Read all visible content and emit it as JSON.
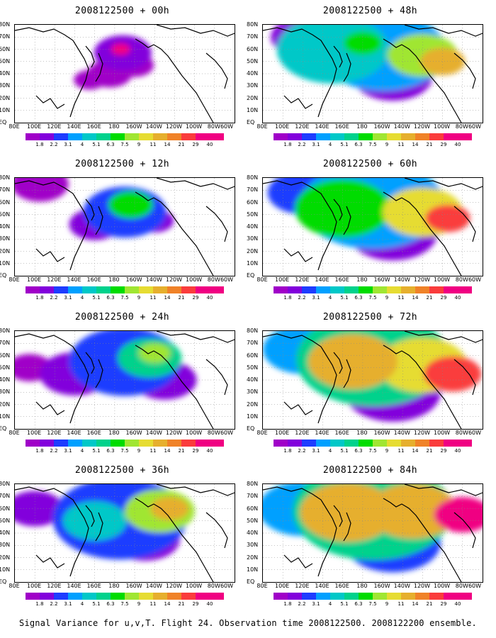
{
  "caption": "Signal Variance for u,v,T. Flight 24. Observation time 2008122500. 2008122200 ensemble.",
  "lat_labels": [
    "80N",
    "70N",
    "60N",
    "50N",
    "40N",
    "30N",
    "20N",
    "10N",
    "EQ"
  ],
  "lon_labels": [
    "80E",
    "100E",
    "120E",
    "140E",
    "160E",
    "180",
    "160W",
    "140W",
    "120W",
    "100W",
    "80W",
    "60W"
  ],
  "colorbar": {
    "levels": [
      "1.8",
      "2.2",
      "3.1",
      "4",
      "5.1",
      "6.3",
      "7.5",
      "9",
      "11",
      "14",
      "21",
      "29",
      "40"
    ],
    "colors": [
      "#a000c8",
      "#8200dc",
      "#1e3cff",
      "#00a0ff",
      "#00c8c8",
      "#00d28c",
      "#00dc00",
      "#a0e632",
      "#e6dc32",
      "#e6af2d",
      "#f08228",
      "#fa3c3c",
      "#f00082"
    ]
  },
  "chart_data": [
    {
      "type": "heatmap",
      "title": "2008122500 + 00h",
      "ylim": [
        0,
        80
      ],
      "xlim": [
        80,
        300
      ],
      "blobs": [
        {
          "x": 188,
          "y": 57,
          "r": 18,
          "v": 1
        },
        {
          "x": 175,
          "y": 40,
          "r": 14,
          "v": 0
        },
        {
          "x": 200,
          "y": 47,
          "r": 12,
          "v": 0
        },
        {
          "x": 186,
          "y": 60,
          "r": 6,
          "v": 12
        },
        {
          "x": 155,
          "y": 35,
          "r": 10,
          "v": 0
        }
      ]
    },
    {
      "type": "heatmap",
      "title": "2008122500 + 48h",
      "ylim": [
        0,
        80
      ],
      "xlim": [
        80,
        300
      ],
      "blobs": [
        {
          "x": 200,
          "y": 58,
          "r": 40,
          "v": 3
        },
        {
          "x": 150,
          "y": 60,
          "r": 35,
          "v": 4
        },
        {
          "x": 240,
          "y": 55,
          "r": 22,
          "v": 7
        },
        {
          "x": 260,
          "y": 50,
          "r": 14,
          "v": 9
        },
        {
          "x": 180,
          "y": 65,
          "r": 12,
          "v": 6
        },
        {
          "x": 210,
          "y": 38,
          "r": 25,
          "v": 1
        },
        {
          "x": 120,
          "y": 70,
          "r": 20,
          "v": 1
        }
      ]
    },
    {
      "type": "heatmap",
      "title": "2008122500 + 12h",
      "ylim": [
        0,
        80
      ],
      "xlim": [
        80,
        300
      ],
      "blobs": [
        {
          "x": 190,
          "y": 52,
          "r": 26,
          "v": 2
        },
        {
          "x": 196,
          "y": 58,
          "r": 14,
          "v": 6
        },
        {
          "x": 160,
          "y": 42,
          "r": 16,
          "v": 1
        },
        {
          "x": 220,
          "y": 45,
          "r": 12,
          "v": 1
        },
        {
          "x": 105,
          "y": 75,
          "r": 18,
          "v": 0
        }
      ]
    },
    {
      "type": "heatmap",
      "title": "2008122500 + 60h",
      "ylim": [
        0,
        80
      ],
      "xlim": [
        80,
        300
      ],
      "blobs": [
        {
          "x": 190,
          "y": 58,
          "r": 45,
          "v": 3
        },
        {
          "x": 160,
          "y": 55,
          "r": 30,
          "v": 6
        },
        {
          "x": 240,
          "y": 52,
          "r": 25,
          "v": 8
        },
        {
          "x": 265,
          "y": 47,
          "r": 14,
          "v": 11
        },
        {
          "x": 210,
          "y": 35,
          "r": 28,
          "v": 1
        },
        {
          "x": 120,
          "y": 68,
          "r": 22,
          "v": 2
        }
      ]
    },
    {
      "type": "heatmap",
      "title": "2008122500 + 24h",
      "ylim": [
        0,
        80
      ],
      "xlim": [
        80,
        300
      ],
      "blobs": [
        {
          "x": 190,
          "y": 55,
          "r": 35,
          "v": 2
        },
        {
          "x": 215,
          "y": 58,
          "r": 20,
          "v": 5
        },
        {
          "x": 220,
          "y": 62,
          "r": 10,
          "v": 7
        },
        {
          "x": 140,
          "y": 45,
          "r": 22,
          "v": 1
        },
        {
          "x": 230,
          "y": 40,
          "r": 20,
          "v": 1
        },
        {
          "x": 95,
          "y": 50,
          "r": 14,
          "v": 0
        }
      ]
    },
    {
      "type": "heatmap",
      "title": "2008122500 + 72h",
      "ylim": [
        0,
        80
      ],
      "xlim": [
        80,
        300
      ],
      "blobs": [
        {
          "x": 190,
          "y": 57,
          "r": 48,
          "v": 5
        },
        {
          "x": 170,
          "y": 55,
          "r": 28,
          "v": 9
        },
        {
          "x": 240,
          "y": 52,
          "r": 28,
          "v": 8
        },
        {
          "x": 270,
          "y": 45,
          "r": 18,
          "v": 11
        },
        {
          "x": 210,
          "y": 30,
          "r": 30,
          "v": 1
        },
        {
          "x": 120,
          "y": 65,
          "r": 25,
          "v": 3
        }
      ]
    },
    {
      "type": "heatmap",
      "title": "2008122500 + 36h",
      "ylim": [
        0,
        80
      ],
      "xlim": [
        80,
        300
      ],
      "blobs": [
        {
          "x": 185,
          "y": 52,
          "r": 42,
          "v": 2
        },
        {
          "x": 225,
          "y": 58,
          "r": 22,
          "v": 7
        },
        {
          "x": 235,
          "y": 60,
          "r": 12,
          "v": 9
        },
        {
          "x": 160,
          "y": 50,
          "r": 20,
          "v": 4
        },
        {
          "x": 210,
          "y": 35,
          "r": 22,
          "v": 1
        },
        {
          "x": 100,
          "y": 60,
          "r": 18,
          "v": 1
        }
      ]
    },
    {
      "type": "heatmap",
      "title": "2008122500 + 84h",
      "ylim": [
        0,
        80
      ],
      "xlim": [
        80,
        300
      ],
      "blobs": [
        {
          "x": 190,
          "y": 58,
          "r": 50,
          "v": 5
        },
        {
          "x": 165,
          "y": 57,
          "r": 30,
          "v": 9
        },
        {
          "x": 230,
          "y": 58,
          "r": 28,
          "v": 9
        },
        {
          "x": 280,
          "y": 55,
          "r": 18,
          "v": 12
        },
        {
          "x": 210,
          "y": 32,
          "r": 30,
          "v": 2
        },
        {
          "x": 120,
          "y": 60,
          "r": 28,
          "v": 3
        }
      ]
    }
  ]
}
